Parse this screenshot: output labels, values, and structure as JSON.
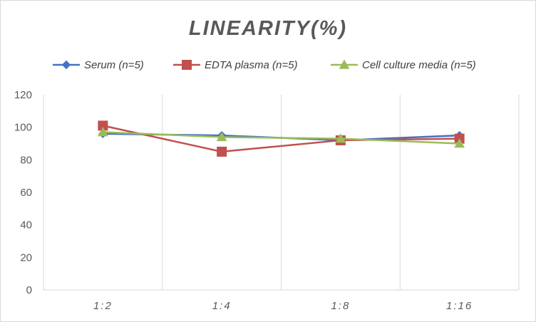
{
  "chart_data": {
    "type": "line",
    "title": "LINEARITY(%)",
    "xlabel": "",
    "ylabel": "",
    "categories": [
      "1:2",
      "1:4",
      "1:8",
      "1:16"
    ],
    "ylim": [
      0,
      120
    ],
    "yticks": [
      0,
      20,
      40,
      60,
      80,
      100,
      120
    ],
    "grid": "vertical category separators",
    "legend": "top",
    "series": [
      {
        "name": "Serum (n=5)",
        "values": [
          96,
          95,
          92,
          95
        ],
        "color": "#4472C4",
        "marker": "diamond"
      },
      {
        "name": "EDTA plasma (n=5)",
        "values": [
          101,
          85,
          92,
          93
        ],
        "color": "#C0504D",
        "marker": "square"
      },
      {
        "name": "Cell culture media (n=5)",
        "values": [
          97,
          94,
          93,
          90
        ],
        "color": "#9BBB59",
        "marker": "triangle"
      }
    ]
  }
}
